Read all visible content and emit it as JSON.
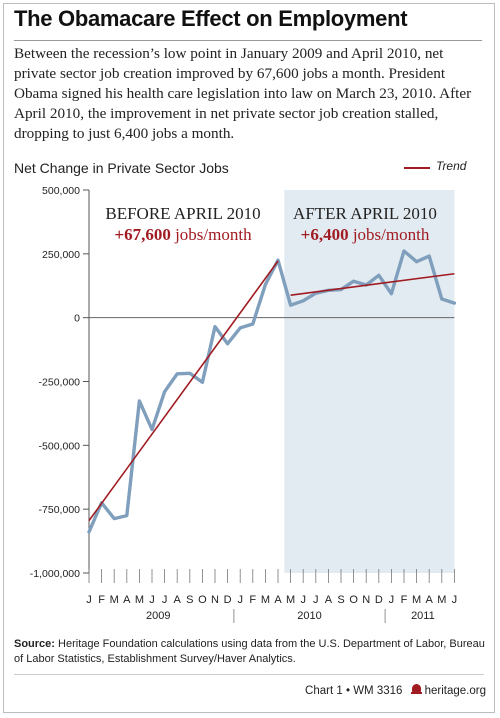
{
  "header": {
    "title": "The Obamacare Effect on Employment",
    "intro": "Between the recession’s low point in January 2009 and April 2010, net private sector job creation improved by 67,600 jobs a month. President Obama signed his health care legislation into law on March 23, 2010. After April 2010, the improvement in net private sector job creation stalled, dropping to just 6,400 jobs a month."
  },
  "annotations": {
    "before_heading": "BEFORE APRIL 2010",
    "before_value": "+67,600",
    "before_unit": "jobs/month",
    "after_heading": "AFTER APRIL 2010",
    "after_value": "+6,400",
    "after_unit": "jobs/month"
  },
  "colors": {
    "series": "#7f9fbd",
    "trend": "#a01c22",
    "after_shade": "#e2ebf1",
    "annotation_value": "#a01c22"
  },
  "chart_data": {
    "type": "line",
    "title": "Net Change in Private Sector Jobs",
    "ylim": [
      -1000000,
      500000
    ],
    "yticks": [
      -1000000,
      -750000,
      -500000,
      -250000,
      0,
      250000,
      500000
    ],
    "ytick_labels": [
      "-1,000,000",
      "-750,000",
      "-500,000",
      "-250,000",
      "0",
      "250,000",
      "500,000"
    ],
    "x_month_labels": [
      "J",
      "F",
      "M",
      "A",
      "M",
      "J",
      "J",
      "A",
      "S",
      "O",
      "N",
      "D",
      "J",
      "F",
      "M",
      "A",
      "M",
      "J",
      "J",
      "A",
      "S",
      "O",
      "N",
      "D",
      "J",
      "F",
      "M",
      "A",
      "M",
      "J"
    ],
    "year_labels": [
      {
        "label": "2009",
        "start_index": 0,
        "end_index": 11
      },
      {
        "label": "2010",
        "start_index": 12,
        "end_index": 23
      },
      {
        "label": "2011",
        "start_index": 24,
        "end_index": 29
      }
    ],
    "shaded_region": {
      "from_index": 15.5,
      "to_index": 29,
      "label": "After April 2010"
    },
    "series": [
      {
        "values": [
          -839000,
          -725000,
          -787000,
          -775000,
          -326000,
          -438000,
          -290000,
          -220000,
          -218000,
          -253000,
          -35000,
          -102000,
          -40000,
          -25000,
          130000,
          225000,
          49000,
          66000,
          96000,
          107000,
          110000,
          143000,
          128000,
          166000,
          94000,
          261000,
          219000,
          241000,
          73000,
          57000
        ]
      }
    ],
    "trend_lines": [
      {
        "name": "Trend",
        "from_index": 0,
        "to_index": 15,
        "from_value": -795000,
        "to_value": 222000
      },
      {
        "name": "Trend",
        "from_index": 16,
        "to_index": 29,
        "from_value": 88000,
        "to_value": 172000
      }
    ],
    "legend": {
      "label": "Trend",
      "position": "top-right"
    }
  },
  "source": {
    "label": "Source:",
    "text": "Heritage Foundation calculations using data from the U.S. Department of Labor, Bureau of Labor Statistics, Establishment Survey/Haver Analytics."
  },
  "footer": {
    "chart_label": "Chart 1",
    "separator": "•",
    "report_id": "WM 3316",
    "site": "heritage.org"
  }
}
